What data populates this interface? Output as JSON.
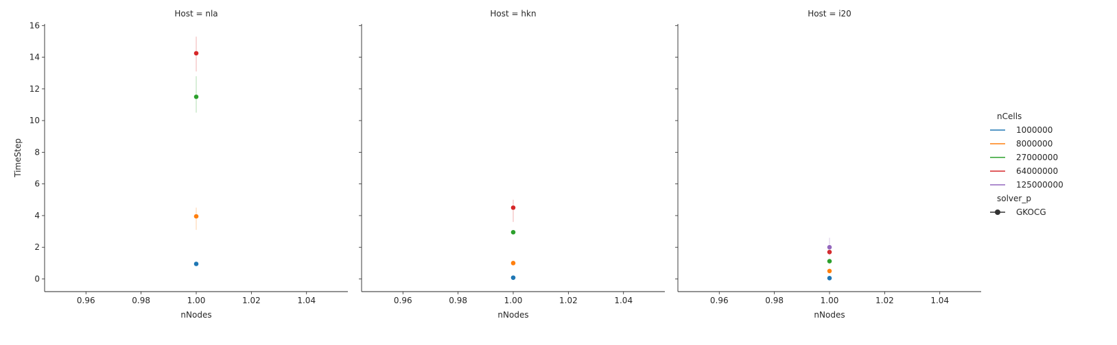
{
  "chart_data": {
    "type": "scatter",
    "shared_y_axis": true,
    "ylabel": "TimeStep",
    "xlabel": "nNodes",
    "xlim": [
      0.945,
      1.055
    ],
    "ylim": [
      -0.8,
      16.1
    ],
    "xticks": [
      0.96,
      0.98,
      1.0,
      1.02,
      1.04
    ],
    "yticks": [
      0,
      2,
      4,
      6,
      8,
      10,
      12,
      14,
      16
    ],
    "x_tick_labels": [
      "0.96",
      "0.98",
      "1.00",
      "1.02",
      "1.04"
    ],
    "y_tick_labels": [
      "0",
      "2",
      "4",
      "6",
      "8",
      "10",
      "12",
      "14",
      "16"
    ],
    "grid": false,
    "legend": {
      "placement": "right",
      "hue_title": "nCells",
      "style_title": "solver_p",
      "style_entries": [
        "GKOCG"
      ],
      "hue_entries": [
        {
          "label": "1000000",
          "color": "#1f77b4"
        },
        {
          "label": "8000000",
          "color": "#ff7f0e"
        },
        {
          "label": "27000000",
          "color": "#2ca02c"
        },
        {
          "label": "64000000",
          "color": "#d62728"
        },
        {
          "label": "125000000",
          "color": "#9467bd"
        }
      ]
    },
    "panels": [
      {
        "title": "Host = nla",
        "series": [
          {
            "hue": "1000000",
            "x": 1.0,
            "y": 0.95,
            "err_low": 0.95,
            "err_high": 0.95
          },
          {
            "hue": "8000000",
            "x": 1.0,
            "y": 3.95,
            "err_low": 3.1,
            "err_high": 4.5
          },
          {
            "hue": "27000000",
            "x": 1.0,
            "y": 11.5,
            "err_low": 10.5,
            "err_high": 12.8
          },
          {
            "hue": "64000000",
            "x": 1.0,
            "y": 14.25,
            "err_low": 13.1,
            "err_high": 15.3
          }
        ]
      },
      {
        "title": "Host = hkn",
        "series": [
          {
            "hue": "1000000",
            "x": 1.0,
            "y": 0.08,
            "err_low": 0.08,
            "err_high": 0.08
          },
          {
            "hue": "8000000",
            "x": 1.0,
            "y": 1.0,
            "err_low": 1.0,
            "err_high": 1.0
          },
          {
            "hue": "27000000",
            "x": 1.0,
            "y": 2.95,
            "err_low": 2.95,
            "err_high": 2.95
          },
          {
            "hue": "64000000",
            "x": 1.0,
            "y": 4.5,
            "err_low": 3.6,
            "err_high": 5.0
          }
        ]
      },
      {
        "title": "Host = i20",
        "series": [
          {
            "hue": "1000000",
            "x": 1.0,
            "y": 0.05,
            "err_low": 0.05,
            "err_high": 0.05
          },
          {
            "hue": "8000000",
            "x": 1.0,
            "y": 0.5,
            "err_low": 0.5,
            "err_high": 0.5
          },
          {
            "hue": "27000000",
            "x": 1.0,
            "y": 1.12,
            "err_low": 1.12,
            "err_high": 1.12
          },
          {
            "hue": "64000000",
            "x": 1.0,
            "y": 1.7,
            "err_low": 1.5,
            "err_high": 1.9
          },
          {
            "hue": "125000000",
            "x": 1.0,
            "y": 2.0,
            "err_low": 1.6,
            "err_high": 2.6
          }
        ]
      }
    ]
  }
}
